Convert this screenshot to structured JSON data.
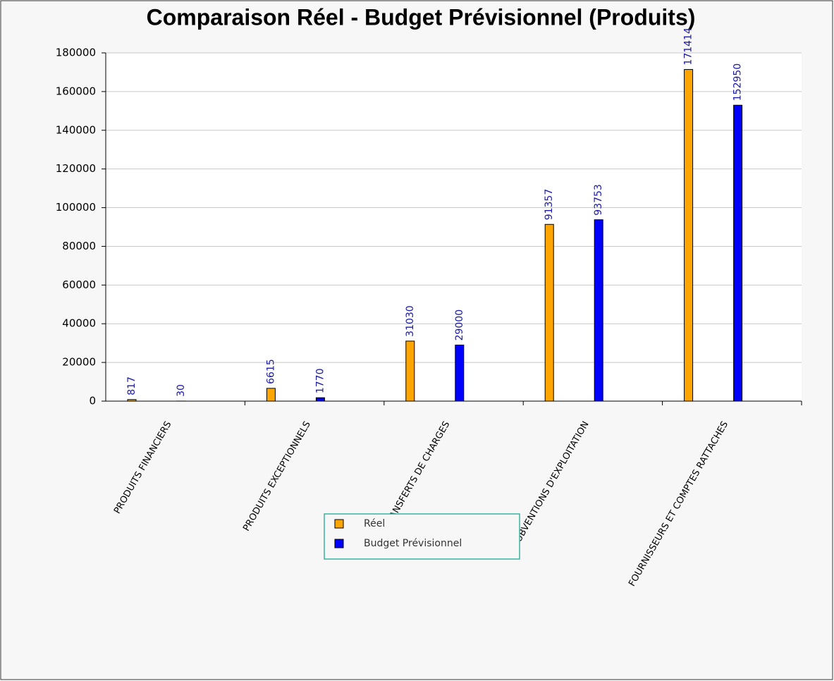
{
  "chart_data": {
    "type": "bar",
    "title": "Comparaison Réel - Budget Prévisionnel (Produits)",
    "categories": [
      "PRODUITS FINANCIERS",
      "PRODUITS EXCEPTIONNELS",
      "TRANSFERTS DE CHARGES",
      "SUBVENTIONS D'EXPLOITATION",
      "FOURNISSEURS ET COMPTES RATTACHES"
    ],
    "series": [
      {
        "name": "Réel",
        "color": "#ffa500",
        "values": [
          817,
          6615,
          31030,
          91357,
          171414
        ]
      },
      {
        "name": "Budget Prévisionnel",
        "color": "#0000ff",
        "values": [
          30,
          1770,
          29000,
          93753,
          152950
        ]
      }
    ],
    "ylim": [
      0,
      180000
    ],
    "yticks": [
      0,
      20000,
      40000,
      60000,
      80000,
      100000,
      120000,
      140000,
      160000,
      180000
    ],
    "grid": true,
    "legend": "bottom"
  }
}
